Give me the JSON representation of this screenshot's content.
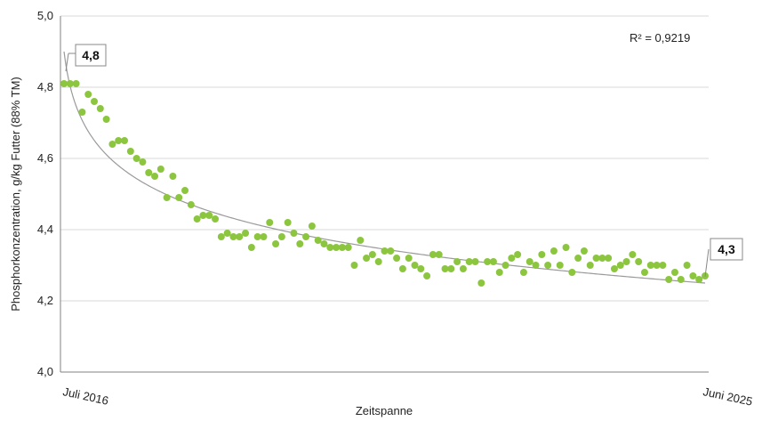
{
  "chart_data": {
    "type": "scatter",
    "title": "",
    "xlabel": "Zeitspanne",
    "ylabel": "Phosphorkonzentration, g/kg Futter (88% TM)",
    "ylim": [
      4.0,
      5.0
    ],
    "yticks": [
      "4,0",
      "4,2",
      "4,4",
      "4,6",
      "4,8",
      "5,0"
    ],
    "xtick_labels": [
      "Juli 2016",
      "Juni 2025"
    ],
    "grid": "horizontal",
    "marker_color": "#8cc63f",
    "trend_color": "#9a9a9a",
    "r_squared": "R² = 0,9219",
    "annotations": {
      "start": "4,8",
      "end": "4,3"
    },
    "trendline": {
      "type": "logarithmic",
      "start": 4.9,
      "end": 4.25
    },
    "series": [
      {
        "values": [
          4.81,
          4.81,
          4.81,
          4.73,
          4.78,
          4.76,
          4.74,
          4.71,
          4.64,
          4.65,
          4.65,
          4.62,
          4.6,
          4.59,
          4.56,
          4.55,
          4.57,
          4.49,
          4.55,
          4.49,
          4.51,
          4.47,
          4.43,
          4.44,
          4.44,
          4.43,
          4.38,
          4.39,
          4.38,
          4.38,
          4.39,
          4.35,
          4.38,
          4.38,
          4.42,
          4.36,
          4.38,
          4.42,
          4.39,
          4.36,
          4.38,
          4.41,
          4.37,
          4.36,
          4.35,
          4.35,
          4.35,
          4.35,
          4.3,
          4.37,
          4.32,
          4.33,
          4.31,
          4.34,
          4.34,
          4.32,
          4.29,
          4.32,
          4.3,
          4.29,
          4.27,
          4.33,
          4.33,
          4.29,
          4.29,
          4.31,
          4.29,
          4.31,
          4.31,
          4.25,
          4.31,
          4.31,
          4.28,
          4.3,
          4.32,
          4.33,
          4.28,
          4.31,
          4.3,
          4.33,
          4.3,
          4.34,
          4.3,
          4.35,
          4.28,
          4.32,
          4.34,
          4.3,
          4.32,
          4.32,
          4.32,
          4.29,
          4.3,
          4.31,
          4.33,
          4.31,
          4.28,
          4.3,
          4.3,
          4.3,
          4.26,
          4.28,
          4.26,
          4.3,
          4.27,
          4.26,
          4.27
        ]
      }
    ]
  }
}
